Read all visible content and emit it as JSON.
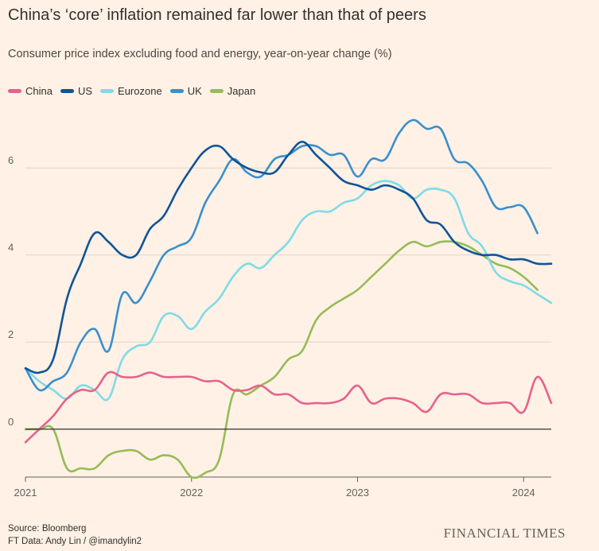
{
  "chart_data": {
    "type": "line",
    "title": "China’s ‘core’ inflation remained far lower than that of peers",
    "subtitle": "Consumer price index excluding food and energy, year-on-year change (%)",
    "xlim": [
      "2021-01",
      "2024-03"
    ],
    "ylim": [
      -1.1,
      7.3
    ],
    "x_ticks": [
      "2021",
      "2022",
      "2023",
      "2024"
    ],
    "y_ticks": [
      0,
      2,
      4,
      6
    ],
    "grid": true,
    "legend_position": "top-left",
    "series": [
      {
        "name": "China",
        "color": "#e8618c",
        "x": [
          "2021-01",
          "2021-02",
          "2021-03",
          "2021-04",
          "2021-05",
          "2021-06",
          "2021-07",
          "2021-08",
          "2021-09",
          "2021-10",
          "2021-11",
          "2021-12",
          "2022-01",
          "2022-02",
          "2022-03",
          "2022-04",
          "2022-05",
          "2022-06",
          "2022-07",
          "2022-08",
          "2022-09",
          "2022-10",
          "2022-11",
          "2022-12",
          "2023-01",
          "2023-02",
          "2023-03",
          "2023-04",
          "2023-05",
          "2023-06",
          "2023-07",
          "2023-08",
          "2023-09",
          "2023-10",
          "2023-11",
          "2023-12",
          "2024-01",
          "2024-02",
          "2024-03"
        ],
        "values": [
          -0.3,
          0.0,
          0.3,
          0.7,
          0.9,
          0.9,
          1.3,
          1.2,
          1.2,
          1.3,
          1.2,
          1.2,
          1.2,
          1.1,
          1.1,
          0.9,
          0.9,
          1.0,
          0.8,
          0.8,
          0.6,
          0.6,
          0.6,
          0.7,
          1.0,
          0.6,
          0.7,
          0.7,
          0.6,
          0.4,
          0.8,
          0.8,
          0.8,
          0.6,
          0.6,
          0.6,
          0.4,
          1.2,
          0.6
        ]
      },
      {
        "name": "US",
        "color": "#0f5499",
        "x": [
          "2021-01",
          "2021-02",
          "2021-03",
          "2021-04",
          "2021-05",
          "2021-06",
          "2021-07",
          "2021-08",
          "2021-09",
          "2021-10",
          "2021-11",
          "2021-12",
          "2022-01",
          "2022-02",
          "2022-03",
          "2022-04",
          "2022-05",
          "2022-06",
          "2022-07",
          "2022-08",
          "2022-09",
          "2022-10",
          "2022-11",
          "2022-12",
          "2023-01",
          "2023-02",
          "2023-03",
          "2023-04",
          "2023-05",
          "2023-06",
          "2023-07",
          "2023-08",
          "2023-09",
          "2023-10",
          "2023-11",
          "2023-12",
          "2024-01",
          "2024-02",
          "2024-03"
        ],
        "values": [
          1.4,
          1.3,
          1.6,
          3.0,
          3.8,
          4.5,
          4.3,
          4.0,
          4.0,
          4.6,
          4.9,
          5.5,
          6.0,
          6.4,
          6.5,
          6.2,
          6.0,
          5.9,
          5.9,
          6.3,
          6.6,
          6.3,
          6.0,
          5.7,
          5.6,
          5.5,
          5.6,
          5.5,
          5.3,
          4.8,
          4.7,
          4.3,
          4.1,
          4.0,
          4.0,
          3.9,
          3.9,
          3.8,
          3.8
        ]
      },
      {
        "name": "Eurozone",
        "color": "#7fdbe6",
        "x": [
          "2021-01",
          "2021-02",
          "2021-03",
          "2021-04",
          "2021-05",
          "2021-06",
          "2021-07",
          "2021-08",
          "2021-09",
          "2021-10",
          "2021-11",
          "2021-12",
          "2022-01",
          "2022-02",
          "2022-03",
          "2022-04",
          "2022-05",
          "2022-06",
          "2022-07",
          "2022-08",
          "2022-09",
          "2022-10",
          "2022-11",
          "2022-12",
          "2023-01",
          "2023-02",
          "2023-03",
          "2023-04",
          "2023-05",
          "2023-06",
          "2023-07",
          "2023-08",
          "2023-09",
          "2023-10",
          "2023-11",
          "2023-12",
          "2024-01",
          "2024-02",
          "2024-03"
        ],
        "values": [
          1.4,
          1.1,
          0.9,
          0.7,
          1.0,
          0.9,
          0.7,
          1.6,
          1.9,
          2.0,
          2.6,
          2.6,
          2.3,
          2.7,
          3.0,
          3.5,
          3.8,
          3.7,
          4.0,
          4.3,
          4.8,
          5.0,
          5.0,
          5.2,
          5.3,
          5.6,
          5.7,
          5.6,
          5.3,
          5.5,
          5.5,
          5.3,
          4.5,
          4.2,
          3.6,
          3.4,
          3.3,
          3.1,
          2.9
        ]
      },
      {
        "name": "UK",
        "color": "#3a8fcd",
        "x": [
          "2021-01",
          "2021-02",
          "2021-03",
          "2021-04",
          "2021-05",
          "2021-06",
          "2021-07",
          "2021-08",
          "2021-09",
          "2021-10",
          "2021-11",
          "2021-12",
          "2022-01",
          "2022-02",
          "2022-03",
          "2022-04",
          "2022-05",
          "2022-06",
          "2022-07",
          "2022-08",
          "2022-09",
          "2022-10",
          "2022-11",
          "2022-12",
          "2023-01",
          "2023-02",
          "2023-03",
          "2023-04",
          "2023-05",
          "2023-06",
          "2023-07",
          "2023-08",
          "2023-09",
          "2023-10",
          "2023-11",
          "2023-12",
          "2024-01",
          "2024-02"
        ],
        "values": [
          1.4,
          0.9,
          1.1,
          1.3,
          2.0,
          2.3,
          1.8,
          3.1,
          2.9,
          3.4,
          4.0,
          4.2,
          4.4,
          5.2,
          5.7,
          6.2,
          5.9,
          5.8,
          6.2,
          6.3,
          6.5,
          6.5,
          6.3,
          6.3,
          5.8,
          6.2,
          6.2,
          6.8,
          7.1,
          6.9,
          6.9,
          6.2,
          6.1,
          5.7,
          5.1,
          5.1,
          5.1,
          4.5
        ]
      },
      {
        "name": "Japan",
        "color": "#96bc57",
        "x": [
          "2021-01",
          "2021-02",
          "2021-03",
          "2021-04",
          "2021-05",
          "2021-06",
          "2021-07",
          "2021-08",
          "2021-09",
          "2021-10",
          "2021-11",
          "2021-12",
          "2022-01",
          "2022-02",
          "2022-03",
          "2022-04",
          "2022-05",
          "2022-06",
          "2022-07",
          "2022-08",
          "2022-09",
          "2022-10",
          "2022-11",
          "2022-12",
          "2023-01",
          "2023-02",
          "2023-03",
          "2023-04",
          "2023-05",
          "2023-06",
          "2023-07",
          "2023-08",
          "2023-09",
          "2023-10",
          "2023-11",
          "2023-12",
          "2024-01",
          "2024-02"
        ],
        "values": [
          0.0,
          0.0,
          0.0,
          -0.9,
          -0.9,
          -0.9,
          -0.6,
          -0.5,
          -0.5,
          -0.7,
          -0.6,
          -0.7,
          -1.1,
          -1.0,
          -0.7,
          0.8,
          0.8,
          1.0,
          1.2,
          1.6,
          1.8,
          2.5,
          2.8,
          3.0,
          3.2,
          3.5,
          3.8,
          4.1,
          4.3,
          4.2,
          4.3,
          4.3,
          4.2,
          4.0,
          3.8,
          3.7,
          3.5,
          3.2
        ]
      }
    ]
  },
  "source_text": "Source: Bloomberg",
  "credit_text": "FT Data: Andy Lin / @imandylin2",
  "brand": "FINANCIAL TIMES",
  "colors": {
    "background": "#fff1e5",
    "grid": "#e0d3c8",
    "zero_line": "#33302e"
  }
}
